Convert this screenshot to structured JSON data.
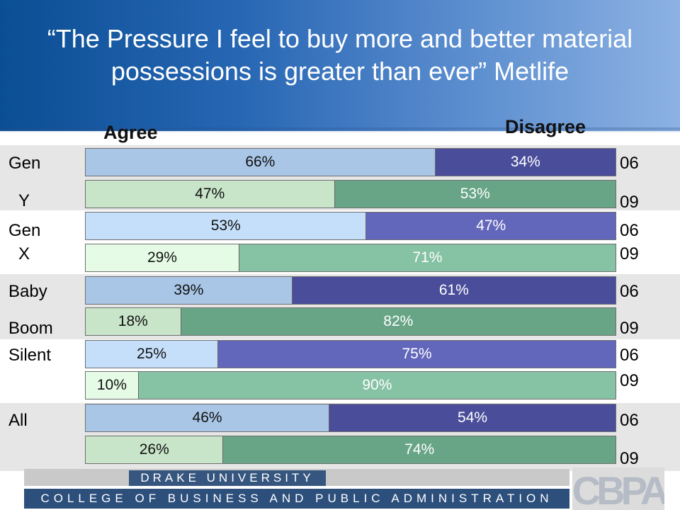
{
  "title": "“The Pressure I feel to buy more and better material possessions is greater than ever”    Metlife",
  "legend": {
    "agree": "Agree",
    "disagree": "Disagree"
  },
  "colors": {
    "band": "#e6e6e6",
    "agree_06": "#a9c6e6",
    "disagree_06": "#4a4e9a",
    "agree_09": "#c8e4c9",
    "disagree_09": "#68a586",
    "agree_06_alt": "#c5dffa",
    "disagree_06_alt": "#6367bb",
    "agree_09_alt": "#e5fbe5",
    "disagree_09_alt": "#86c2a4"
  },
  "groups": [
    {
      "label_lines": [
        "Gen",
        "Y"
      ],
      "years": [
        "06",
        "09"
      ]
    },
    {
      "label_lines": [
        "Gen",
        "X"
      ],
      "years": [
        "06",
        "09"
      ]
    },
    {
      "label_lines": [
        "Baby",
        "Boom"
      ],
      "years": [
        "06",
        "09"
      ]
    },
    {
      "label_lines": [
        "Silent",
        ""
      ],
      "years": [
        "06",
        "09"
      ]
    },
    {
      "label_lines": [
        "All",
        ""
      ],
      "years": [
        "06",
        "09"
      ]
    }
  ],
  "chart_data": {
    "type": "bar",
    "stacked": true,
    "orientation": "horizontal",
    "title": "“The Pressure I feel to buy more and better material possessions is greater than ever”    Metlife",
    "categories": [
      "Gen Y 06",
      "Gen Y 09",
      "Gen X 06",
      "Gen X 09",
      "Baby Boom 06",
      "Baby Boom 09",
      "Silent 06",
      "Silent 09",
      "All 06",
      "All 09"
    ],
    "series": [
      {
        "name": "Agree",
        "values": [
          66,
          47,
          53,
          29,
          39,
          18,
          25,
          10,
          46,
          26
        ],
        "labels": [
          "66%",
          "47%",
          "53%",
          "29%",
          "39%",
          "18%",
          "25%",
          "10%",
          "46%",
          "26%"
        ]
      },
      {
        "name": "Disagree",
        "values": [
          34,
          53,
          47,
          71,
          61,
          82,
          75,
          90,
          54,
          74
        ],
        "labels": [
          "34%",
          "53%",
          "47%",
          "71%",
          "61%",
          "82%",
          "75%",
          "90%",
          "54%",
          "74%"
        ]
      }
    ],
    "xlim": [
      0,
      100
    ],
    "legend": "top"
  },
  "footer": {
    "university": "DRAKE UNIVERSITY",
    "college": "COLLEGE OF BUSINESS AND PUBLIC ADMINISTRATION",
    "logo_text": "CBPA"
  }
}
